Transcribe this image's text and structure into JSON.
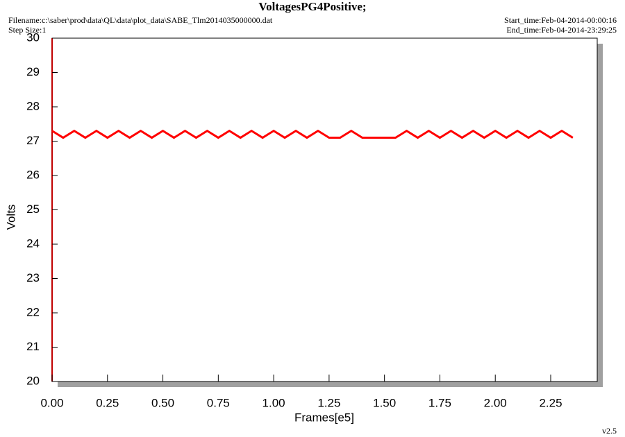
{
  "chart_data": {
    "type": "line",
    "title": "VoltagesPG4Positive;",
    "filename": "Filename:c:\\saber\\prod\\data\\QL\\data\\plot_data\\SABE_Tlm2014035000000.dat",
    "step_size": "Step Size:1",
    "start_time": "Start_time:Feb-04-2014-00:00:16",
    "end_time": "End_time:Feb-04-2014-23:29:25",
    "version": "v2.5",
    "x_label": "Frames[e5]",
    "y_label": "Volts",
    "x": [
      0,
      0.05,
      0.1,
      0.15,
      0.2,
      0.25,
      0.3,
      0.35,
      0.4,
      0.45,
      0.5,
      0.55,
      0.6,
      0.65,
      0.7,
      0.75,
      0.8,
      0.85,
      0.9,
      0.95,
      1,
      1.05,
      1.1,
      1.15,
      1.2,
      1.25,
      1.3,
      1.35,
      1.4,
      1.45,
      1.5,
      1.55,
      1.6,
      1.65,
      1.7,
      1.75,
      1.8,
      1.85,
      1.9,
      1.95,
      2,
      2.05,
      2.1,
      2.15,
      2.2,
      2.25,
      2.3,
      2.35
    ],
    "series": [
      {
        "name": "VoltagesPG4Positive",
        "color": "#ff0000",
        "values": [
          27.3,
          27.1,
          27.3,
          27.1,
          27.3,
          27.1,
          27.3,
          27.1,
          27.3,
          27.1,
          27.3,
          27.1,
          27.3,
          27.1,
          27.3,
          27.1,
          27.3,
          27.1,
          27.3,
          27.1,
          27.3,
          27.1,
          27.3,
          27.1,
          27.3,
          27.1,
          27.1,
          27.3,
          27.1,
          27.1,
          27.1,
          27.1,
          27.3,
          27.1,
          27.3,
          27.1,
          27.3,
          27.1,
          27.3,
          27.1,
          27.3,
          27.1,
          27.3,
          27.1,
          27.3,
          27.1,
          27.3,
          27.1
        ]
      }
    ],
    "xlim": [
      0,
      2.46
    ],
    "ylim": [
      20,
      30
    ],
    "xticks": [
      {
        "value": 0,
        "label": "0.00"
      },
      0.25,
      {
        "value": 0.5,
        "label": "0.50"
      },
      0.75,
      {
        "value": 1,
        "label": "1.00"
      },
      1.25,
      {
        "value": 1.5,
        "label": "1.50"
      },
      1.75,
      {
        "value": 2,
        "label": "2.00"
      },
      2.25
    ],
    "yticks": [
      20,
      21,
      22,
      23,
      24,
      25,
      26,
      27,
      28,
      29,
      30
    ]
  }
}
